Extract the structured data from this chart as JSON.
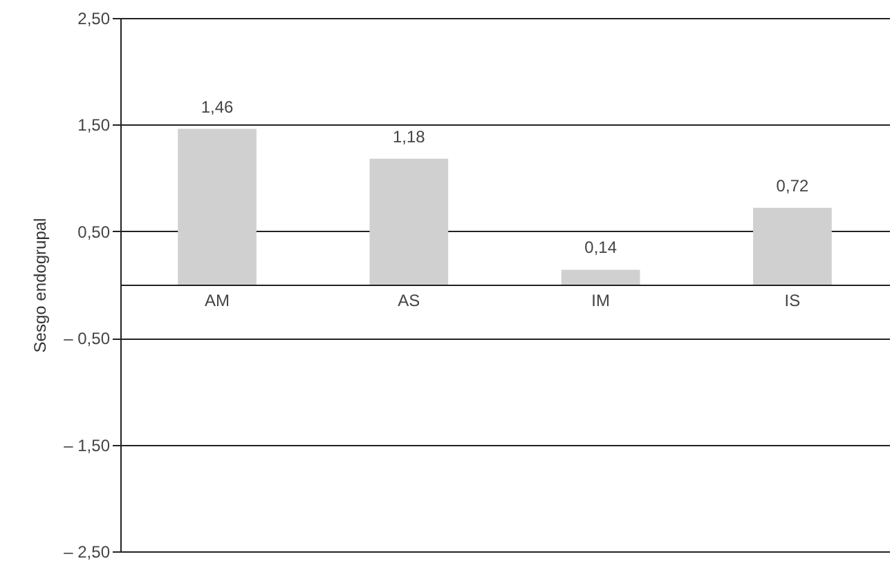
{
  "chart_data": {
    "type": "bar",
    "ylabel": "Sesgo endogrupal",
    "categories": [
      "AM",
      "AS",
      "IM",
      "IS"
    ],
    "values": [
      1.46,
      1.18,
      0.14,
      0.72
    ],
    "value_labels": [
      "1,46",
      "1,18",
      "0,14",
      "0,72"
    ],
    "color": "#d0d0d0",
    "ylim": [
      -2.5,
      2.5
    ],
    "yticks": [
      {
        "value": -2.5,
        "label": "– 2,50"
      },
      {
        "value": -1.5,
        "label": "– 1,50"
      },
      {
        "value": -0.5,
        "label": "– 0,50"
      },
      {
        "value": 0.5,
        "label": "0,50"
      },
      {
        "value": 1.5,
        "label": "1,50"
      },
      {
        "value": 2.5,
        "label": "2,50"
      }
    ],
    "grid": "y"
  }
}
